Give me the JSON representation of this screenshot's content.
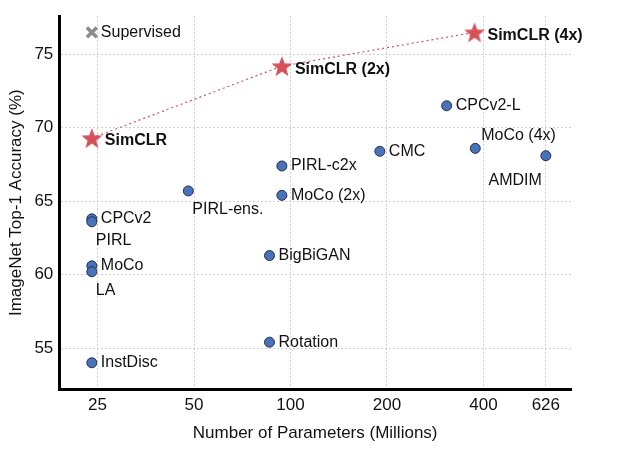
{
  "chart_data": {
    "type": "scatter",
    "xlabel": "Number of Parameters (Millions)",
    "ylabel": "ImageNet Top-1 Accuracy (%)",
    "log": "x",
    "grid": true,
    "xlim": [
      19,
      750
    ],
    "xticks": [
      25,
      50,
      100,
      200,
      400,
      626
    ],
    "ylim": [
      52.2,
      77.6
    ],
    "yticks": [
      55,
      60,
      65,
      70,
      75
    ],
    "series": [
      {
        "color": "#8c8c8c",
        "marker": "x",
        "x": [
          24
        ],
        "values": [
          76.5
        ],
        "labels": [
          "Supervised"
        ]
      },
      {
        "color": "#d6505a",
        "marker": "star",
        "line_style": "dotted",
        "x": [
          24,
          94,
          375
        ],
        "values": [
          69.3,
          74.2,
          76.5
        ],
        "labels": [
          "SimCLR",
          "SimCLR (2x)",
          "SimCLR (4x)"
        ]
      },
      {
        "color": "#4a72b8",
        "marker": "circle",
        "x": [
          24,
          24,
          24,
          24,
          24,
          48,
          86,
          86,
          94,
          94,
          190,
          307,
          377,
          626
        ],
        "values": [
          63.8,
          63.6,
          60.6,
          60.2,
          54.0,
          65.7,
          61.3,
          55.4,
          67.4,
          65.4,
          68.4,
          71.5,
          68.6,
          68.1
        ],
        "labels": [
          "CPCv2",
          "PIRL",
          "MoCo",
          "LA",
          "InstDisc",
          "PIRL-ens.",
          "BigBiGAN",
          "Rotation",
          "PIRL-c2x",
          "MoCo (2x)",
          "CMC",
          "CPCv2-L",
          "MoCo (4x)",
          "AMDIM"
        ]
      }
    ]
  }
}
